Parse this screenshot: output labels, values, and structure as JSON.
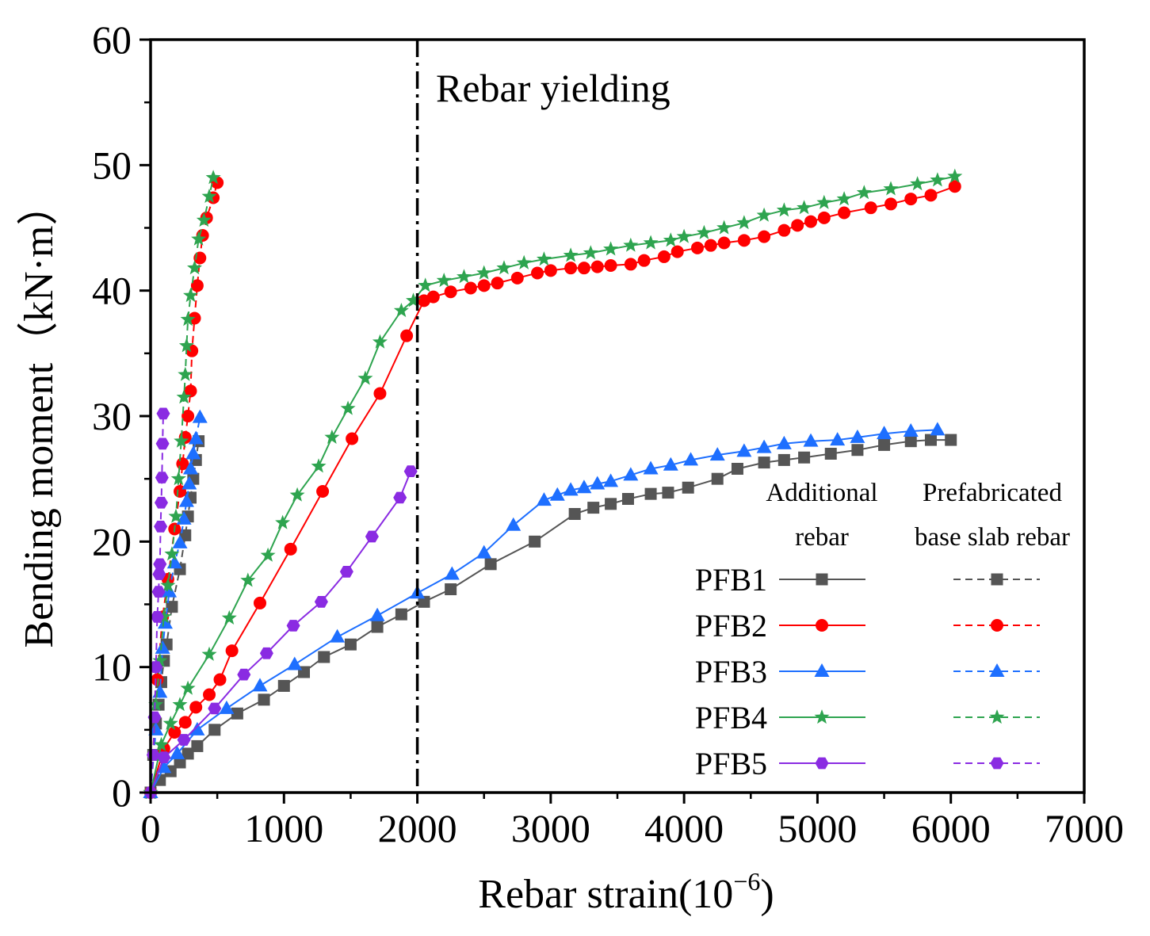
{
  "chart_data": {
    "type": "line",
    "xlabel": "Rebar strain(10",
    "xlabel_sup": "−6",
    "xlabel_close": ")",
    "ylabel": "Bending moment（kN·m）",
    "xlim": [
      0,
      7000
    ],
    "ylim": [
      0,
      60
    ],
    "xticks": [
      0,
      1000,
      2000,
      3000,
      4000,
      5000,
      6000,
      7000
    ],
    "yticks": [
      0,
      10,
      20,
      30,
      40,
      50,
      60
    ],
    "yield_line_x": 2000,
    "yield_label": "Rebar yielding",
    "legend": {
      "position": "bottom-right",
      "headers": [
        "Additional",
        "rebar",
        "Prefabricated",
        "base slab rebar"
      ]
    },
    "series": [
      {
        "name": "PFB1",
        "color": "#555555",
        "marker": "square",
        "additional": [
          [
            0,
            0
          ],
          [
            70,
            1
          ],
          [
            150,
            1.7
          ],
          [
            220,
            2.4
          ],
          [
            280,
            3.1
          ],
          [
            350,
            3.7
          ],
          [
            480,
            5
          ],
          [
            650,
            6.3
          ],
          [
            850,
            7.4
          ],
          [
            1000,
            8.5
          ],
          [
            1150,
            9.6
          ],
          [
            1300,
            10.8
          ],
          [
            1500,
            11.8
          ],
          [
            1700,
            13.2
          ],
          [
            1880,
            14.2
          ],
          [
            2050,
            15.2
          ],
          [
            2250,
            16.2
          ],
          [
            2550,
            18.2
          ],
          [
            2880,
            20
          ],
          [
            3180,
            22.2
          ],
          [
            3320,
            22.7
          ],
          [
            3450,
            23
          ],
          [
            3580,
            23.4
          ],
          [
            3750,
            23.8
          ],
          [
            3880,
            23.9
          ],
          [
            4030,
            24.3
          ],
          [
            4250,
            25
          ],
          [
            4400,
            25.8
          ],
          [
            4600,
            26.3
          ],
          [
            4750,
            26.5
          ],
          [
            4900,
            26.7
          ],
          [
            5100,
            27
          ],
          [
            5300,
            27.3
          ],
          [
            5500,
            27.7
          ],
          [
            5700,
            28
          ],
          [
            5850,
            28.1
          ],
          [
            6000,
            28.1
          ]
        ],
        "prefabricated": [
          [
            0,
            0
          ],
          [
            20,
            3
          ],
          [
            40,
            5.5
          ],
          [
            60,
            7
          ],
          [
            80,
            8.8
          ],
          [
            100,
            10.5
          ],
          [
            120,
            11.8
          ],
          [
            160,
            14.8
          ],
          [
            220,
            17.8
          ],
          [
            260,
            20.5
          ],
          [
            280,
            22
          ],
          [
            300,
            23.5
          ],
          [
            320,
            25
          ],
          [
            340,
            26.5
          ],
          [
            360,
            28
          ]
        ]
      },
      {
        "name": "PFB2",
        "color": "#ff0000",
        "marker": "circle",
        "additional": [
          [
            0,
            0
          ],
          [
            100,
            3.5
          ],
          [
            180,
            4.8
          ],
          [
            260,
            5.6
          ],
          [
            340,
            6.8
          ],
          [
            440,
            7.8
          ],
          [
            520,
            9
          ],
          [
            610,
            11.3
          ],
          [
            820,
            15.1
          ],
          [
            1050,
            19.4
          ],
          [
            1290,
            24
          ],
          [
            1510,
            28.2
          ],
          [
            1720,
            31.8
          ],
          [
            1920,
            36.4
          ],
          [
            2050,
            39.2
          ],
          [
            2120,
            39.5
          ],
          [
            2250,
            39.9
          ],
          [
            2400,
            40.2
          ],
          [
            2500,
            40.4
          ],
          [
            2600,
            40.6
          ],
          [
            2750,
            41
          ],
          [
            2900,
            41.4
          ],
          [
            3000,
            41.6
          ],
          [
            3150,
            41.8
          ],
          [
            3250,
            41.8
          ],
          [
            3350,
            41.9
          ],
          [
            3450,
            42
          ],
          [
            3600,
            42.1
          ],
          [
            3700,
            42.4
          ],
          [
            3850,
            42.7
          ],
          [
            3950,
            43.1
          ],
          [
            4100,
            43.4
          ],
          [
            4200,
            43.6
          ],
          [
            4300,
            43.8
          ],
          [
            4450,
            44
          ],
          [
            4600,
            44.3
          ],
          [
            4750,
            44.8
          ],
          [
            4850,
            45.2
          ],
          [
            4950,
            45.5
          ],
          [
            5050,
            45.8
          ],
          [
            5200,
            46.2
          ],
          [
            5400,
            46.6
          ],
          [
            5550,
            46.9
          ],
          [
            5700,
            47.3
          ],
          [
            5850,
            47.6
          ],
          [
            6030,
            48.3
          ]
        ],
        "prefabricated": [
          [
            0,
            0
          ],
          [
            50,
            9
          ],
          [
            90,
            14
          ],
          [
            130,
            17
          ],
          [
            180,
            21
          ],
          [
            220,
            24
          ],
          [
            240,
            26.2
          ],
          [
            260,
            28.3
          ],
          [
            280,
            30
          ],
          [
            300,
            32
          ],
          [
            310,
            35.2
          ],
          [
            330,
            37.8
          ],
          [
            350,
            40.4
          ],
          [
            370,
            42.6
          ],
          [
            390,
            44.4
          ],
          [
            420,
            45.8
          ],
          [
            470,
            47.4
          ],
          [
            500,
            48.6
          ]
        ]
      },
      {
        "name": "PFB3",
        "color": "#1e6fff",
        "marker": "triangle",
        "additional": [
          [
            0,
            0
          ],
          [
            100,
            2
          ],
          [
            200,
            3.1
          ],
          [
            350,
            5
          ],
          [
            570,
            6.7
          ],
          [
            820,
            8.5
          ],
          [
            1080,
            10.2
          ],
          [
            1400,
            12.4
          ],
          [
            1700,
            14.1
          ],
          [
            2000,
            15.9
          ],
          [
            2260,
            17.4
          ],
          [
            2500,
            19.1
          ],
          [
            2720,
            21.3
          ],
          [
            2950,
            23.3
          ],
          [
            3050,
            23.7
          ],
          [
            3150,
            24.1
          ],
          [
            3250,
            24.3
          ],
          [
            3350,
            24.6
          ],
          [
            3450,
            24.8
          ],
          [
            3600,
            25.3
          ],
          [
            3750,
            25.8
          ],
          [
            3900,
            26.1
          ],
          [
            4050,
            26.5
          ],
          [
            4250,
            26.9
          ],
          [
            4450,
            27.2
          ],
          [
            4600,
            27.5
          ],
          [
            4750,
            27.8
          ],
          [
            4950,
            28
          ],
          [
            5150,
            28.1
          ],
          [
            5300,
            28.3
          ],
          [
            5500,
            28.6
          ],
          [
            5700,
            28.8
          ],
          [
            5900,
            28.9
          ]
        ],
        "prefabricated": [
          [
            0,
            0
          ],
          [
            40,
            5
          ],
          [
            70,
            8
          ],
          [
            90,
            11.5
          ],
          [
            110,
            13.5
          ],
          [
            140,
            16
          ],
          [
            180,
            18.3
          ],
          [
            220,
            19.9
          ],
          [
            250,
            21.8
          ],
          [
            270,
            23.2
          ],
          [
            290,
            24.6
          ],
          [
            300,
            25.8
          ],
          [
            320,
            27
          ],
          [
            340,
            28.2
          ],
          [
            370,
            29.9
          ]
        ]
      },
      {
        "name": "PFB4",
        "color": "#2ea44f",
        "marker": "star",
        "additional": [
          [
            0,
            0
          ],
          [
            80,
            3.8
          ],
          [
            150,
            5.5
          ],
          [
            220,
            7
          ],
          [
            280,
            8.3
          ],
          [
            440,
            11
          ],
          [
            590,
            13.9
          ],
          [
            730,
            16.9
          ],
          [
            880,
            18.9
          ],
          [
            990,
            21.5
          ],
          [
            1100,
            23.7
          ],
          [
            1260,
            26
          ],
          [
            1360,
            28.3
          ],
          [
            1480,
            30.6
          ],
          [
            1610,
            33
          ],
          [
            1720,
            35.9
          ],
          [
            1880,
            38.4
          ],
          [
            1970,
            39.2
          ],
          [
            2060,
            40.4
          ],
          [
            2200,
            40.8
          ],
          [
            2350,
            41.1
          ],
          [
            2500,
            41.4
          ],
          [
            2650,
            41.8
          ],
          [
            2800,
            42.2
          ],
          [
            2950,
            42.5
          ],
          [
            3150,
            42.8
          ],
          [
            3300,
            43
          ],
          [
            3450,
            43.3
          ],
          [
            3600,
            43.6
          ],
          [
            3750,
            43.8
          ],
          [
            3900,
            44
          ],
          [
            4000,
            44.3
          ],
          [
            4150,
            44.6
          ],
          [
            4300,
            45
          ],
          [
            4450,
            45.4
          ],
          [
            4600,
            46
          ],
          [
            4750,
            46.4
          ],
          [
            4900,
            46.6
          ],
          [
            5050,
            47
          ],
          [
            5200,
            47.3
          ],
          [
            5350,
            47.8
          ],
          [
            5550,
            48.1
          ],
          [
            5750,
            48.5
          ],
          [
            5900,
            48.8
          ],
          [
            6030,
            49.1
          ]
        ],
        "prefabricated": [
          [
            0,
            0
          ],
          [
            40,
            7
          ],
          [
            70,
            10.5
          ],
          [
            100,
            14
          ],
          [
            130,
            16.5
          ],
          [
            160,
            19
          ],
          [
            190,
            22
          ],
          [
            210,
            25
          ],
          [
            230,
            28
          ],
          [
            250,
            31.5
          ],
          [
            260,
            33.3
          ],
          [
            270,
            35.6
          ],
          [
            280,
            37.7
          ],
          [
            300,
            39.6
          ],
          [
            330,
            41.8
          ],
          [
            360,
            44.1
          ],
          [
            400,
            45.6
          ],
          [
            440,
            47.5
          ],
          [
            470,
            49
          ]
        ]
      },
      {
        "name": "PFB5",
        "color": "#8a2be2",
        "marker": "hexagon",
        "additional": [
          [
            0,
            0
          ],
          [
            100,
            2.8
          ],
          [
            250,
            4.2
          ],
          [
            480,
            6.7
          ],
          [
            700,
            9.4
          ],
          [
            870,
            11.1
          ],
          [
            1070,
            13.3
          ],
          [
            1280,
            15.2
          ],
          [
            1470,
            17.6
          ],
          [
            1660,
            20.4
          ],
          [
            1870,
            23.5
          ],
          [
            1950,
            25.6
          ]
        ],
        "prefabricated": [
          [
            0,
            0
          ],
          [
            20,
            3
          ],
          [
            30,
            6
          ],
          [
            40,
            10
          ],
          [
            50,
            14
          ],
          [
            60,
            16
          ],
          [
            65,
            17.4
          ],
          [
            70,
            18.2
          ],
          [
            75,
            21.2
          ],
          [
            80,
            23.1
          ],
          [
            85,
            25.1
          ],
          [
            90,
            27.8
          ],
          [
            95,
            30.2
          ]
        ]
      }
    ]
  }
}
